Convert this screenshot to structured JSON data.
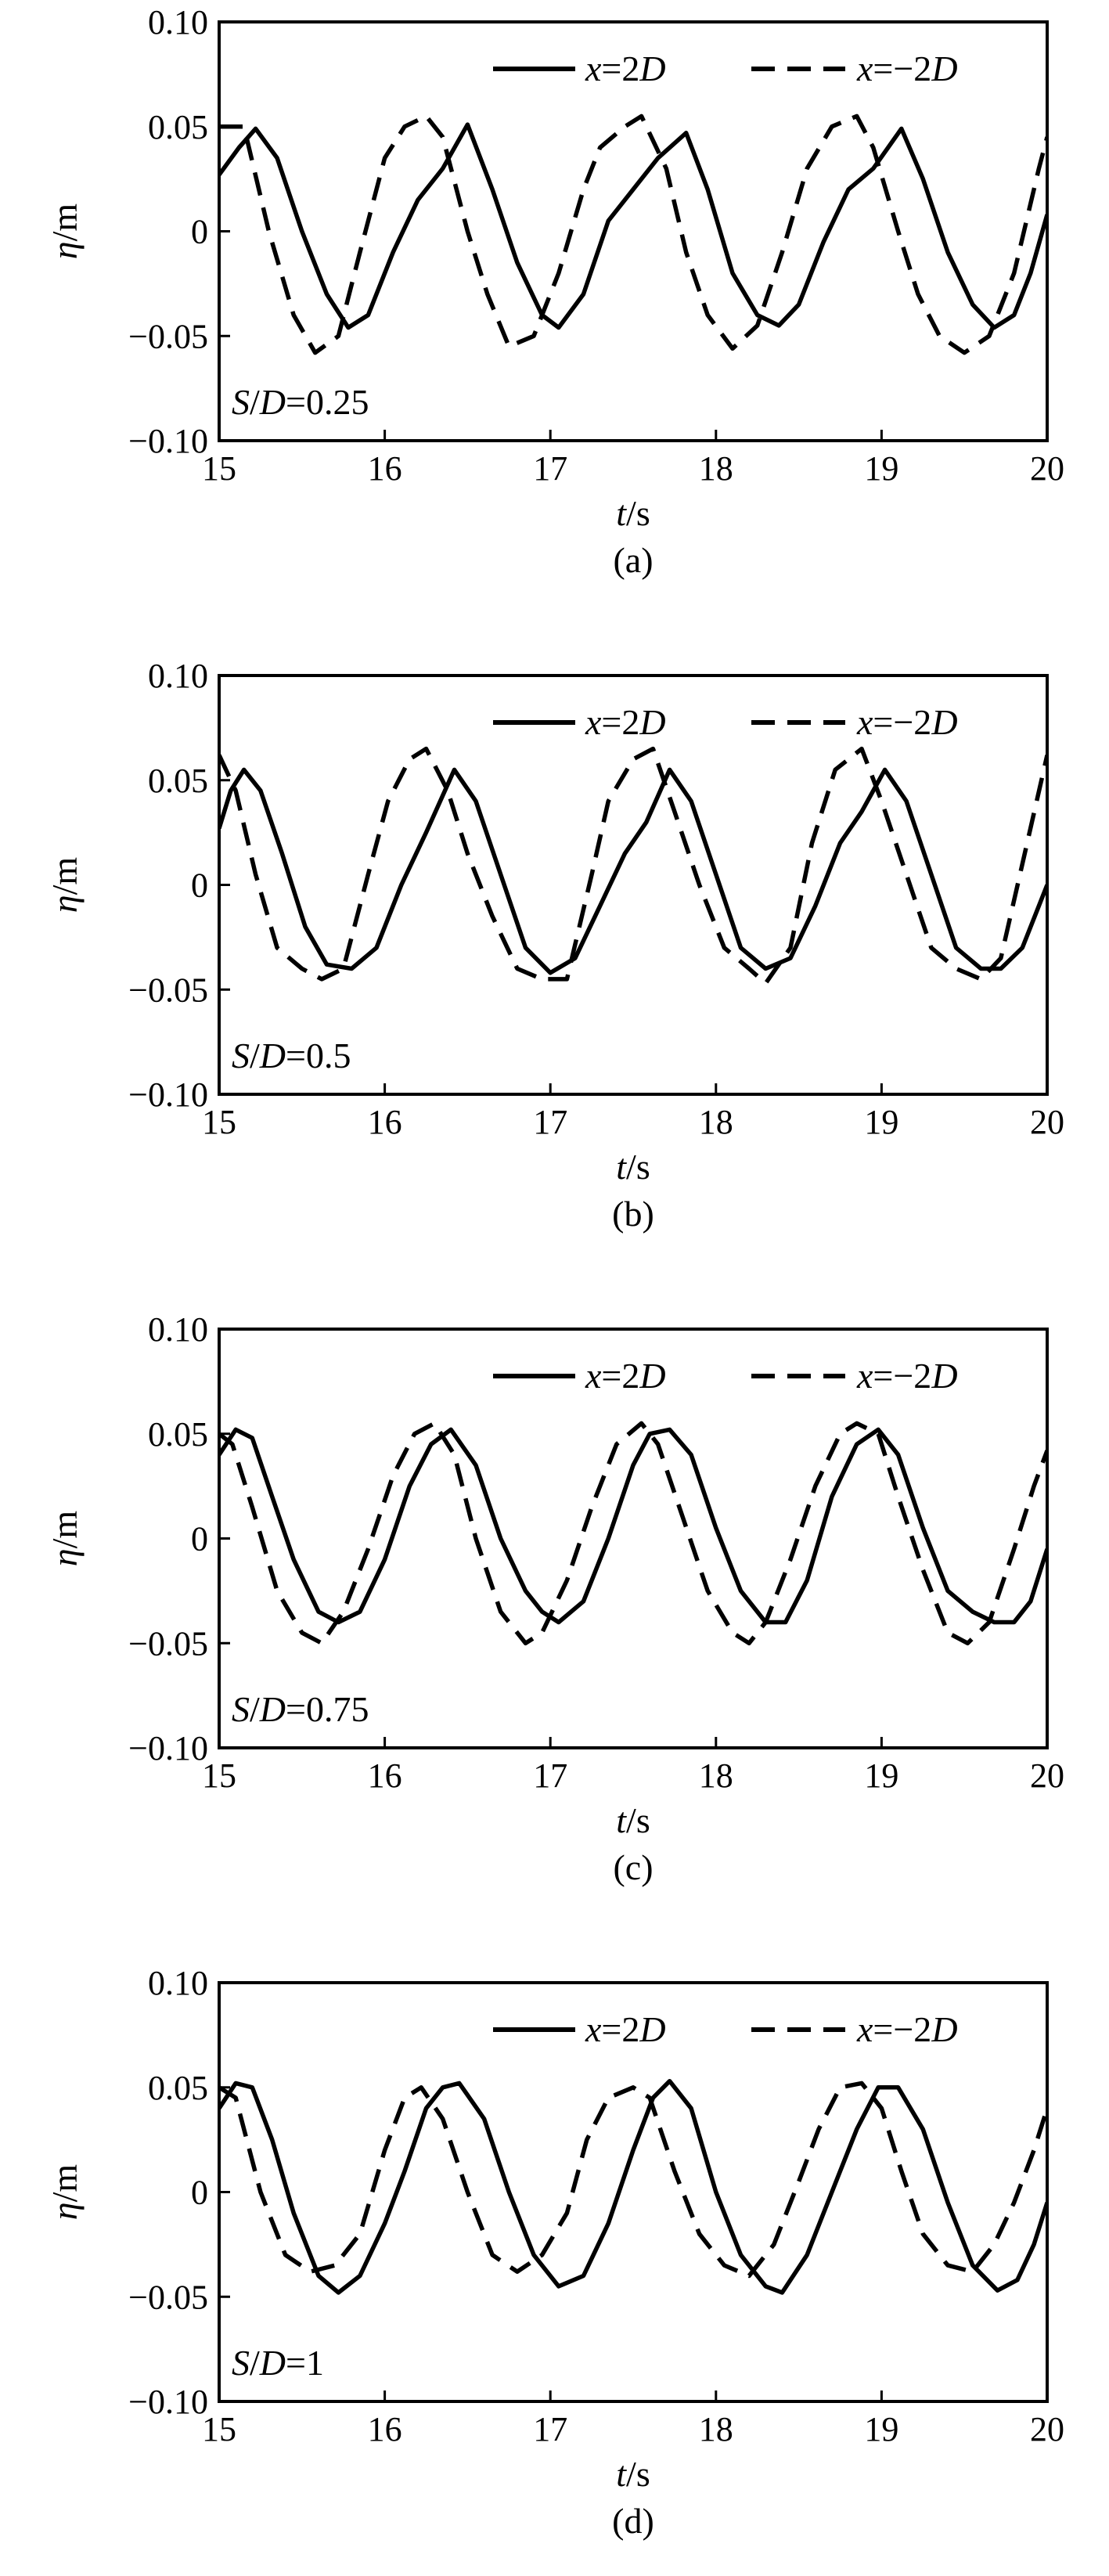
{
  "chart_data": [
    {
      "type": "line",
      "panel_label": "(a)",
      "annotation": {
        "var": "S/D",
        "value": "=0.25"
      },
      "xlabel": {
        "var": "t",
        "unit": "/s"
      },
      "ylabel": {
        "var": "η",
        "unit": "/m"
      },
      "xlim": [
        15,
        20
      ],
      "ylim": [
        -0.1,
        0.1
      ],
      "xticks": [
        "15",
        "16",
        "17",
        "18",
        "19",
        "20"
      ],
      "yticks": [
        "0.10",
        "0.05",
        "0",
        "−0.05",
        "−0.10"
      ],
      "legend_position": "top-right",
      "series": [
        {
          "name_var": "x",
          "name_rest": "=2",
          "name_var2": "D",
          "style": "solid",
          "x": [
            15.0,
            15.12,
            15.22,
            15.35,
            15.5,
            15.65,
            15.78,
            15.9,
            16.05,
            16.2,
            16.35,
            16.5,
            16.65,
            16.8,
            16.95,
            17.05,
            17.2,
            17.35,
            17.5,
            17.65,
            17.82,
            17.95,
            18.1,
            18.25,
            18.38,
            18.5,
            18.65,
            18.8,
            18.95,
            19.12,
            19.25,
            19.4,
            19.55,
            19.68,
            19.8,
            19.9,
            20.0
          ],
          "y": [
            0.027,
            0.04,
            0.049,
            0.035,
            0.0,
            -0.03,
            -0.046,
            -0.04,
            -0.01,
            0.015,
            0.03,
            0.051,
            0.02,
            -0.015,
            -0.04,
            -0.046,
            -0.03,
            0.005,
            0.02,
            0.035,
            0.047,
            0.02,
            -0.02,
            -0.04,
            -0.045,
            -0.035,
            -0.005,
            0.02,
            0.03,
            0.049,
            0.025,
            -0.01,
            -0.035,
            -0.046,
            -0.04,
            -0.02,
            0.008
          ]
        },
        {
          "name_var": "x",
          "name_rest": "=−2",
          "name_var2": "D",
          "style": "dashed",
          "x": [
            15.0,
            15.15,
            15.3,
            15.45,
            15.58,
            15.72,
            15.85,
            16.0,
            16.12,
            16.25,
            16.35,
            16.5,
            16.62,
            16.75,
            16.9,
            17.05,
            17.2,
            17.3,
            17.45,
            17.55,
            17.7,
            17.82,
            17.95,
            18.1,
            18.25,
            18.4,
            18.55,
            18.7,
            18.85,
            18.95,
            19.1,
            19.22,
            19.35,
            19.5,
            19.65,
            19.8,
            19.95,
            20.0
          ],
          "y": [
            0.05,
            0.05,
            0.0,
            -0.04,
            -0.058,
            -0.05,
            -0.01,
            0.035,
            0.05,
            0.055,
            0.045,
            0.0,
            -0.03,
            -0.055,
            -0.05,
            -0.02,
            0.02,
            0.04,
            0.05,
            0.055,
            0.03,
            -0.01,
            -0.04,
            -0.056,
            -0.045,
            -0.01,
            0.03,
            0.05,
            0.055,
            0.04,
            0.0,
            -0.03,
            -0.05,
            -0.058,
            -0.05,
            -0.02,
            0.03,
            0.045
          ]
        }
      ]
    },
    {
      "type": "line",
      "panel_label": "(b)",
      "annotation": {
        "var": "S/D",
        "value": "=0.5"
      },
      "xlabel": {
        "var": "t",
        "unit": "/s"
      },
      "ylabel": {
        "var": "η",
        "unit": "/m"
      },
      "xlim": [
        15,
        20
      ],
      "ylim": [
        -0.1,
        0.1
      ],
      "xticks": [
        "15",
        "16",
        "17",
        "18",
        "19",
        "20"
      ],
      "yticks": [
        "0.10",
        "0.05",
        "0",
        "−0.05",
        "−0.10"
      ],
      "legend_position": "top-right",
      "series": [
        {
          "name_var": "x",
          "name_rest": "=2",
          "name_var2": "D",
          "style": "solid",
          "x": [
            15.0,
            15.07,
            15.15,
            15.25,
            15.38,
            15.52,
            15.65,
            15.8,
            15.95,
            16.1,
            16.25,
            16.42,
            16.55,
            16.7,
            16.85,
            17.0,
            17.15,
            17.3,
            17.45,
            17.58,
            17.72,
            17.85,
            18.0,
            18.15,
            18.3,
            18.45,
            18.6,
            18.75,
            18.88,
            19.02,
            19.15,
            19.3,
            19.45,
            19.6,
            19.72,
            19.85,
            20.0
          ],
          "y": [
            0.027,
            0.045,
            0.055,
            0.045,
            0.015,
            -0.02,
            -0.038,
            -0.04,
            -0.03,
            0.0,
            0.025,
            0.055,
            0.04,
            0.005,
            -0.03,
            -0.042,
            -0.035,
            -0.01,
            0.015,
            0.03,
            0.055,
            0.04,
            0.005,
            -0.03,
            -0.04,
            -0.035,
            -0.01,
            0.02,
            0.035,
            0.055,
            0.04,
            0.005,
            -0.03,
            -0.04,
            -0.04,
            -0.03,
            0.0
          ]
        },
        {
          "name_var": "x",
          "name_rest": "=−2",
          "name_var2": "D",
          "style": "dashed",
          "x": [
            15.0,
            15.1,
            15.22,
            15.35,
            15.5,
            15.62,
            15.75,
            15.9,
            16.02,
            16.15,
            16.25,
            16.38,
            16.5,
            16.65,
            16.8,
            16.95,
            17.1,
            17.25,
            17.35,
            17.5,
            17.62,
            17.75,
            17.9,
            18.05,
            18.2,
            18.3,
            18.45,
            18.58,
            18.72,
            18.88,
            19.0,
            19.15,
            19.3,
            19.45,
            19.6,
            19.72,
            19.85,
            20.0
          ],
          "y": [
            0.062,
            0.045,
            0.005,
            -0.03,
            -0.04,
            -0.045,
            -0.04,
            0.005,
            0.04,
            0.06,
            0.065,
            0.045,
            0.015,
            -0.015,
            -0.04,
            -0.045,
            -0.045,
            0.005,
            0.04,
            0.06,
            0.065,
            0.035,
            0.0,
            -0.03,
            -0.04,
            -0.047,
            -0.03,
            0.02,
            0.055,
            0.065,
            0.04,
            0.005,
            -0.03,
            -0.04,
            -0.045,
            -0.035,
            0.01,
            0.062
          ]
        }
      ]
    },
    {
      "type": "line",
      "panel_label": "(c)",
      "annotation": {
        "var": "S/D",
        "value": "=0.75"
      },
      "xlabel": {
        "var": "t",
        "unit": "/s"
      },
      "ylabel": {
        "var": "η",
        "unit": "/m"
      },
      "xlim": [
        15,
        20
      ],
      "ylim": [
        -0.1,
        0.1
      ],
      "xticks": [
        "15",
        "16",
        "17",
        "18",
        "19",
        "20"
      ],
      "yticks": [
        "0.10",
        "0.05",
        "0",
        "−0.05",
        "−0.10"
      ],
      "legend_position": "top-right",
      "series": [
        {
          "name_var": "x",
          "name_rest": "=2",
          "name_var2": "D",
          "style": "solid",
          "x": [
            15.0,
            15.1,
            15.2,
            15.32,
            15.45,
            15.6,
            15.72,
            15.85,
            16.0,
            16.15,
            16.28,
            16.4,
            16.55,
            16.7,
            16.85,
            16.95,
            17.05,
            17.2,
            17.35,
            17.5,
            17.6,
            17.72,
            17.85,
            18.0,
            18.15,
            18.3,
            18.42,
            18.55,
            18.7,
            18.85,
            18.98,
            19.1,
            19.25,
            19.4,
            19.55,
            19.68,
            19.8,
            19.9,
            20.0
          ],
          "y": [
            0.04,
            0.052,
            0.048,
            0.02,
            -0.01,
            -0.035,
            -0.04,
            -0.035,
            -0.01,
            0.025,
            0.045,
            0.052,
            0.035,
            0.0,
            -0.025,
            -0.035,
            -0.04,
            -0.03,
            0.0,
            0.035,
            0.05,
            0.052,
            0.04,
            0.005,
            -0.025,
            -0.04,
            -0.04,
            -0.02,
            0.02,
            0.045,
            0.052,
            0.04,
            0.005,
            -0.025,
            -0.035,
            -0.04,
            -0.04,
            -0.03,
            -0.005
          ]
        },
        {
          "name_var": "x",
          "name_rest": "=−2",
          "name_var2": "D",
          "style": "dashed",
          "x": [
            15.0,
            15.08,
            15.2,
            15.35,
            15.5,
            15.62,
            15.75,
            15.9,
            16.05,
            16.18,
            16.3,
            16.42,
            16.55,
            16.7,
            16.85,
            16.95,
            17.1,
            17.25,
            17.4,
            17.55,
            17.65,
            17.8,
            17.95,
            18.1,
            18.2,
            18.3,
            18.45,
            18.6,
            18.75,
            18.85,
            18.98,
            19.1,
            19.25,
            19.4,
            19.52,
            19.65,
            19.8,
            19.92,
            20.0
          ],
          "y": [
            0.05,
            0.045,
            0.015,
            -0.025,
            -0.045,
            -0.05,
            -0.035,
            -0.005,
            0.03,
            0.05,
            0.055,
            0.04,
            0.0,
            -0.035,
            -0.05,
            -0.045,
            -0.02,
            0.015,
            0.045,
            0.055,
            0.045,
            0.01,
            -0.025,
            -0.045,
            -0.05,
            -0.04,
            -0.01,
            0.025,
            0.05,
            0.055,
            0.05,
            0.02,
            -0.015,
            -0.045,
            -0.05,
            -0.04,
            -0.005,
            0.025,
            0.042
          ]
        }
      ]
    },
    {
      "type": "line",
      "panel_label": "(d)",
      "annotation": {
        "var": "S/D",
        "value": "=1"
      },
      "xlabel": {
        "var": "t",
        "unit": "/s"
      },
      "ylabel": {
        "var": "η",
        "unit": "/m"
      },
      "xlim": [
        15,
        20
      ],
      "ylim": [
        -0.1,
        0.1
      ],
      "xticks": [
        "15",
        "16",
        "17",
        "18",
        "19",
        "20"
      ],
      "yticks": [
        "0.10",
        "0.05",
        "0",
        "−0.05",
        "−0.10"
      ],
      "legend_position": "top-right",
      "series": [
        {
          "name_var": "x",
          "name_rest": "=2",
          "name_var2": "D",
          "style": "solid",
          "x": [
            15.0,
            15.1,
            15.2,
            15.32,
            15.45,
            15.6,
            15.72,
            15.85,
            16.0,
            16.12,
            16.25,
            16.35,
            16.45,
            16.6,
            16.75,
            16.9,
            17.05,
            17.2,
            17.35,
            17.5,
            17.62,
            17.72,
            17.85,
            18.0,
            18.15,
            18.3,
            18.4,
            18.55,
            18.7,
            18.85,
            18.98,
            19.1,
            19.25,
            19.4,
            19.55,
            19.7,
            19.82,
            19.92,
            20.0
          ],
          "y": [
            0.04,
            0.052,
            0.05,
            0.025,
            -0.01,
            -0.04,
            -0.048,
            -0.04,
            -0.015,
            0.01,
            0.04,
            0.05,
            0.052,
            0.035,
            0.0,
            -0.03,
            -0.045,
            -0.04,
            -0.015,
            0.02,
            0.045,
            0.053,
            0.04,
            0.0,
            -0.03,
            -0.045,
            -0.048,
            -0.03,
            0.0,
            0.03,
            0.05,
            0.05,
            0.03,
            -0.005,
            -0.035,
            -0.047,
            -0.042,
            -0.025,
            -0.005
          ]
        },
        {
          "name_var": "x",
          "name_rest": "=−2",
          "name_var2": "D",
          "style": "dashed",
          "x": [
            15.0,
            15.1,
            15.25,
            15.4,
            15.55,
            15.7,
            15.85,
            16.0,
            16.12,
            16.22,
            16.35,
            16.5,
            16.65,
            16.8,
            16.95,
            17.1,
            17.22,
            17.35,
            17.5,
            17.6,
            17.75,
            17.9,
            18.05,
            18.2,
            18.35,
            18.5,
            18.62,
            18.75,
            18.88,
            19.0,
            19.12,
            19.25,
            19.4,
            19.55,
            19.68,
            19.8,
            19.92,
            20.0
          ],
          "y": [
            0.05,
            0.045,
            0.0,
            -0.03,
            -0.038,
            -0.035,
            -0.02,
            0.02,
            0.045,
            0.05,
            0.035,
            0.0,
            -0.03,
            -0.038,
            -0.03,
            -0.01,
            0.025,
            0.045,
            0.05,
            0.045,
            0.01,
            -0.02,
            -0.035,
            -0.04,
            -0.025,
            0.005,
            0.03,
            0.05,
            0.052,
            0.04,
            0.01,
            -0.02,
            -0.035,
            -0.038,
            -0.025,
            -0.005,
            0.02,
            0.04
          ]
        }
      ]
    }
  ]
}
